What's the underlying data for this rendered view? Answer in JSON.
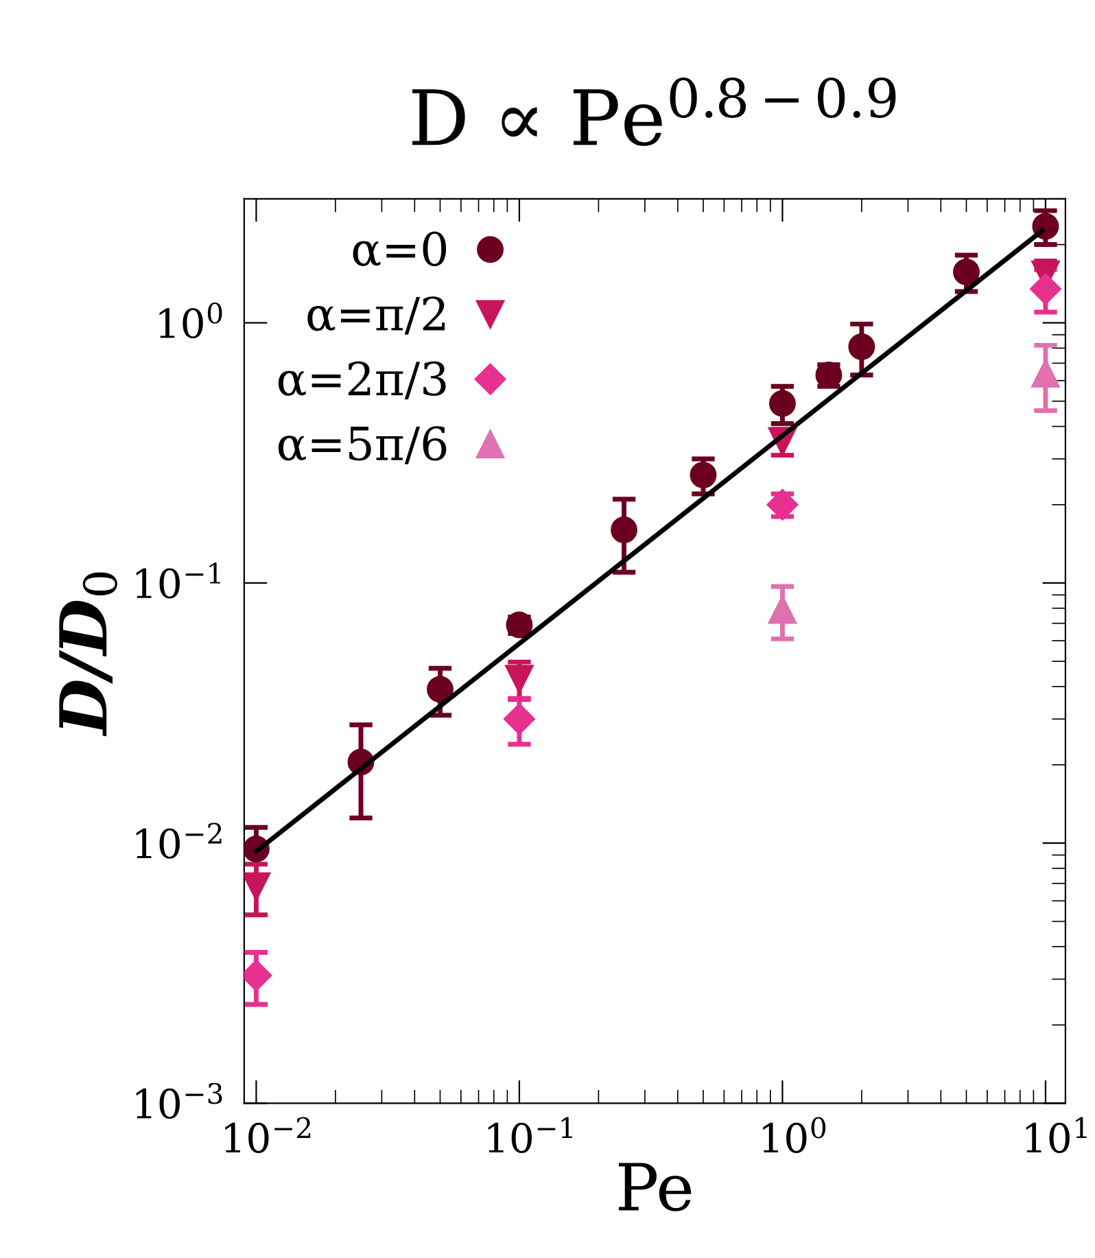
{
  "chart_data": {
    "type": "scatter",
    "title": "D ∝ Pe$^{0.8−0.9}$",
    "xlabel": "Pe",
    "ylabel": "D/D$_{0}$",
    "log": "xy",
    "xlim": [
      0.009,
      11.9
    ],
    "ylim": [
      0.001,
      3
    ],
    "xticks": [
      {
        "value": 0.01,
        "label": "10$^{−2}$"
      },
      {
        "value": 0.1,
        "label": "10$^{−1}$"
      },
      {
        "value": 1,
        "label": "10$^{0}$"
      },
      {
        "value": 10,
        "label": "10$^{1}$"
      }
    ],
    "yticks": [
      {
        "value": 0.001,
        "label": "10$^{−3}$"
      },
      {
        "value": 0.01,
        "label": "10$^{−2}$"
      },
      {
        "value": 0.1,
        "label": "10$^{−1}$"
      },
      {
        "value": 1,
        "label": "10$^{0}$"
      }
    ],
    "legend": "top left",
    "grid": false,
    "series": [
      {
        "name": "α=0",
        "color": "#6b0020",
        "marker": "circle",
        "x": [
          0.01,
          0.025,
          0.05,
          0.1,
          0.25,
          0.5,
          1,
          1.5,
          2,
          5,
          10
        ],
        "values": [
          0.0095,
          0.0205,
          0.039,
          0.069,
          0.16,
          0.26,
          0.49,
          0.63,
          0.81,
          1.57,
          2.35
        ],
        "errors": [
          0.002,
          0.008,
          0.008,
          0.005,
          0.05,
          0.04,
          0.08,
          0.06,
          0.18,
          0.25,
          0.35
        ]
      },
      {
        "name": "α=π/2",
        "color": "#c8145a",
        "marker": "triangle_down",
        "x": [
          0.01,
          0.1,
          1,
          10
        ],
        "values": [
          0.0068,
          0.0427,
          0.35,
          1.53
        ],
        "errors": [
          0.0015,
          0.007,
          0.04,
          0.2
        ]
      },
      {
        "name": "α=2π/3",
        "color": "#e8308f",
        "marker": "diamond",
        "x": [
          0.01,
          0.1,
          1,
          10
        ],
        "values": [
          0.0031,
          0.03,
          0.2,
          1.35
        ],
        "errors": [
          0.0007,
          0.006,
          0.02,
          0.25
        ]
      },
      {
        "name": "α=5π/6",
        "color": "#e070b0",
        "marker": "triangle",
        "x": [
          1,
          10
        ],
        "values": [
          0.079,
          0.64
        ],
        "errors": [
          0.018,
          0.18
        ]
      },
      {
        "type": "line",
        "color": "#000000",
        "line_style": "solid",
        "marker": "none",
        "x": [
          0.01,
          9.7
        ],
        "values": [
          0.0093,
          2.26
        ]
      }
    ]
  }
}
